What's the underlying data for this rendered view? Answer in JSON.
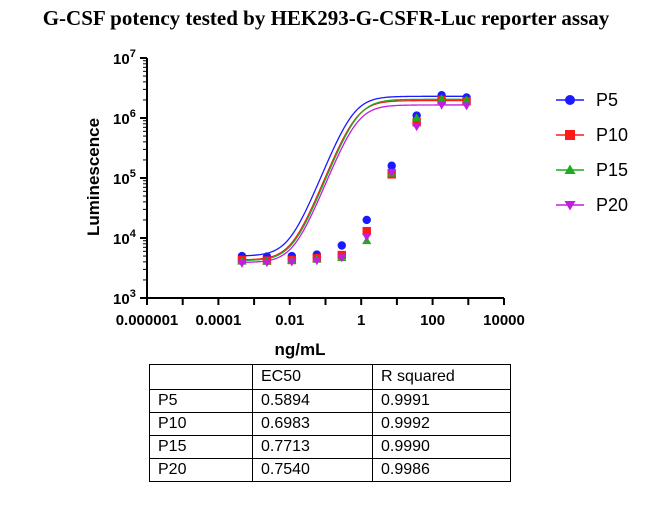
{
  "chart_data": {
    "type": "scatter",
    "title": "G-CSF potency tested by HEK293-G-CSFR-Luc reporter assay",
    "xlabel": "ng/mL",
    "ylabel": "Luminescence",
    "xscale": "log",
    "yscale": "log",
    "xlim": [
      1e-06,
      10000
    ],
    "ylim": [
      1000,
      10000000
    ],
    "xticks": [
      {
        "value": 1e-06,
        "label": "0.000001"
      },
      {
        "value": 0.0001,
        "label": "0.0001"
      },
      {
        "value": 0.01,
        "label": "0.01"
      },
      {
        "value": 1,
        "label": "1"
      },
      {
        "value": 100,
        "label": "100"
      },
      {
        "value": 10000,
        "label": "10000"
      }
    ],
    "yticks": [
      {
        "value": 1000,
        "base": "10",
        "exp": "3"
      },
      {
        "value": 10000,
        "base": "10",
        "exp": "4"
      },
      {
        "value": 100000,
        "base": "10",
        "exp": "5"
      },
      {
        "value": 1000000,
        "base": "10",
        "exp": "6"
      },
      {
        "value": 10000000,
        "base": "10",
        "exp": "7"
      }
    ],
    "x": [
      0.000457,
      0.00229,
      0.0114,
      0.0572,
      0.286,
      1.43,
      7.15,
      35.8,
      179,
      894
    ],
    "legend_position": "right",
    "series": [
      {
        "name": "P5",
        "marker": "circle",
        "color": "#1a1aff",
        "values": [
          5000,
          4900,
          5000,
          5300,
          7500,
          20000,
          160000,
          1100000,
          2400000,
          2200000
        ],
        "fit": {
          "bottom": 5000,
          "top": 2300000,
          "ec50": 0.5894,
          "hill": 1.5
        }
      },
      {
        "name": "P10",
        "marker": "square",
        "color": "#ff1a1a",
        "values": [
          4300,
          4200,
          4300,
          4600,
          5200,
          13000,
          115000,
          850000,
          2000000,
          1900000
        ],
        "fit": {
          "bottom": 4300,
          "top": 1950000,
          "ec50": 0.6983,
          "hill": 1.5
        }
      },
      {
        "name": "P15",
        "marker": "triangle-up",
        "color": "#1faa1f",
        "values": [
          4100,
          4100,
          4200,
          4400,
          4700,
          9000,
          120000,
          1000000,
          2100000,
          2000000
        ],
        "fit": {
          "bottom": 4200,
          "top": 2050000,
          "ec50": 0.7713,
          "hill": 1.5
        }
      },
      {
        "name": "P20",
        "marker": "triangle-down",
        "color": "#c21ee0",
        "values": [
          3800,
          3900,
          4000,
          4200,
          4700,
          10500,
          125000,
          720000,
          1650000,
          1600000
        ],
        "fit": {
          "bottom": 3900,
          "top": 1650000,
          "ec50": 0.754,
          "hill": 1.5
        }
      }
    ]
  },
  "table": {
    "headers": [
      "",
      "EC50",
      "R squared"
    ],
    "rows": [
      [
        "P5",
        "0.5894",
        "0.9991"
      ],
      [
        "P10",
        "0.6983",
        "0.9992"
      ],
      [
        "P15",
        "0.7713",
        "0.9990"
      ],
      [
        "P20",
        "0.7540",
        "0.9986"
      ]
    ]
  }
}
